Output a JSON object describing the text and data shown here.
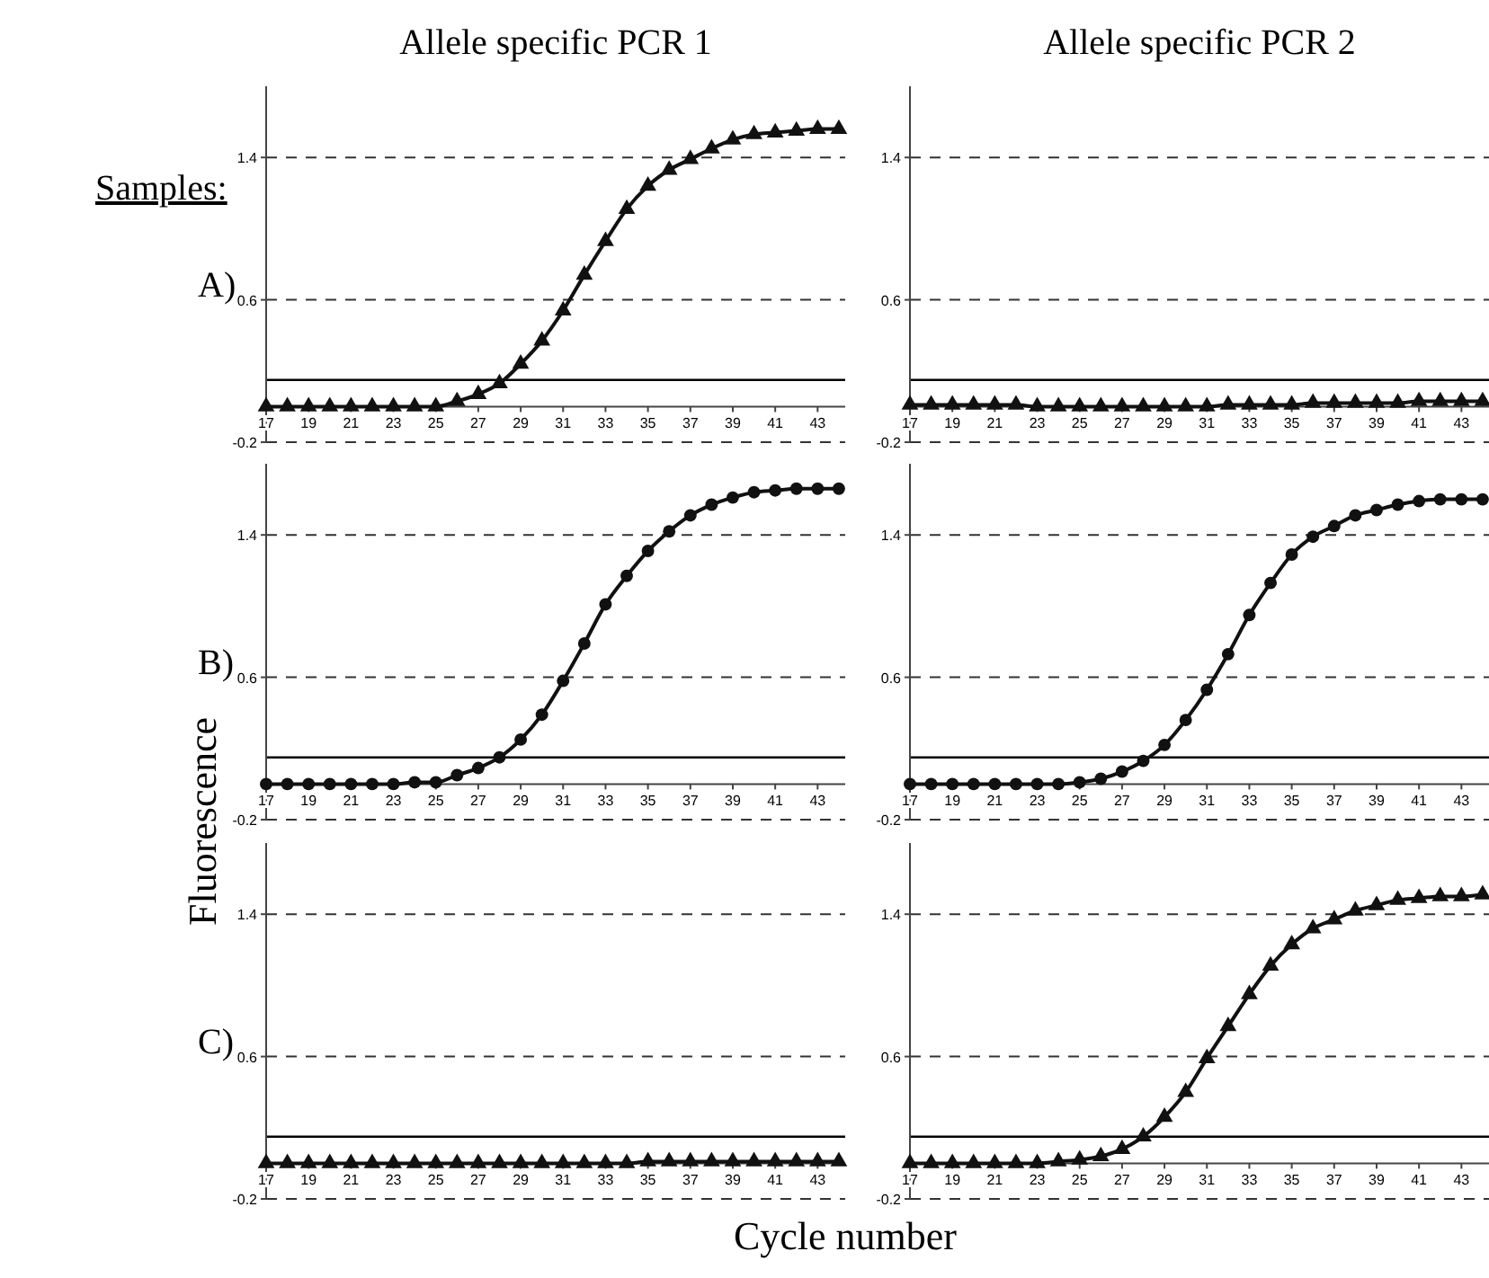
{
  "chart_data": [
    {
      "type": "line",
      "title": "Allele specific PCR 1",
      "annotations": [
        "Samples:",
        "A)"
      ],
      "x": [
        17,
        18,
        19,
        20,
        21,
        22,
        23,
        24,
        25,
        26,
        27,
        28,
        29,
        30,
        31,
        32,
        33,
        34,
        35,
        36,
        37,
        38,
        39,
        40,
        41,
        42,
        43,
        44
      ],
      "series": [
        {
          "color": "#111111",
          "values": [
            0.0,
            0.0,
            0.0,
            0.0,
            0.0,
            0.0,
            0.0,
            0.0,
            0.0,
            0.03,
            0.07,
            0.13,
            0.24,
            0.37,
            0.54,
            0.74,
            0.93,
            1.11,
            1.24,
            1.33,
            1.39,
            1.45,
            1.5,
            1.53,
            1.54,
            1.55,
            1.56,
            1.56
          ]
        }
      ],
      "marker": "triangle",
      "xlim": [
        17,
        44.3
      ],
      "xticks": [
        17,
        19,
        21,
        23,
        25,
        27,
        29,
        31,
        33,
        35,
        37,
        39,
        41,
        43
      ],
      "ylim": [
        -0.2,
        1.8
      ],
      "yticks": [
        -0.2,
        0.6,
        1.4
      ],
      "grid": "y",
      "ref_lines": [
        {
          "axis": "y",
          "value": 0.15
        }
      ]
    },
    {
      "type": "line",
      "title": "Allele specific PCR 2",
      "x": [
        17,
        18,
        19,
        20,
        21,
        22,
        23,
        24,
        25,
        26,
        27,
        28,
        29,
        30,
        31,
        32,
        33,
        34,
        35,
        36,
        37,
        38,
        39,
        40,
        41,
        42,
        43,
        44
      ],
      "series": [
        {
          "color": "#111111",
          "values": [
            0.01,
            0.01,
            0.01,
            0.01,
            0.01,
            0.01,
            0.0,
            0.0,
            0.0,
            0.0,
            0.0,
            0.0,
            0.0,
            0.0,
            0.0,
            0.01,
            0.01,
            0.01,
            0.01,
            0.02,
            0.02,
            0.02,
            0.02,
            0.02,
            0.03,
            0.03,
            0.03,
            0.03
          ]
        }
      ],
      "marker": "triangle",
      "xlim": [
        17,
        44.3
      ],
      "xticks": [
        17,
        19,
        21,
        23,
        25,
        27,
        29,
        31,
        33,
        35,
        37,
        39,
        41,
        43
      ],
      "ylim": [
        -0.2,
        1.8
      ],
      "yticks": [
        -0.2,
        0.6,
        1.4
      ],
      "grid": "y",
      "ref_lines": [
        {
          "axis": "y",
          "value": 0.15
        }
      ]
    },
    {
      "type": "line",
      "ylabel": "Fluorescence",
      "annotations": [
        "B)"
      ],
      "x": [
        17,
        18,
        19,
        20,
        21,
        22,
        23,
        24,
        25,
        26,
        27,
        28,
        29,
        30,
        31,
        32,
        33,
        34,
        35,
        36,
        37,
        38,
        39,
        40,
        41,
        42,
        43,
        44
      ],
      "series": [
        {
          "color": "#111111",
          "values": [
            0.0,
            0.0,
            0.0,
            0.0,
            0.0,
            0.0,
            0.0,
            0.01,
            0.01,
            0.05,
            0.09,
            0.15,
            0.25,
            0.39,
            0.58,
            0.79,
            1.01,
            1.17,
            1.31,
            1.42,
            1.51,
            1.57,
            1.61,
            1.64,
            1.65,
            1.66,
            1.66,
            1.66
          ]
        }
      ],
      "marker": "circle",
      "xlim": [
        17,
        44.3
      ],
      "xticks": [
        17,
        19,
        21,
        23,
        25,
        27,
        29,
        31,
        33,
        35,
        37,
        39,
        41,
        43
      ],
      "ylim": [
        -0.2,
        1.8
      ],
      "yticks": [
        -0.2,
        0.6,
        1.4
      ],
      "grid": "y",
      "ref_lines": [
        {
          "axis": "y",
          "value": 0.15
        }
      ]
    },
    {
      "type": "line",
      "x": [
        17,
        18,
        19,
        20,
        21,
        22,
        23,
        24,
        25,
        26,
        27,
        28,
        29,
        30,
        31,
        32,
        33,
        34,
        35,
        36,
        37,
        38,
        39,
        40,
        41,
        42,
        43,
        44
      ],
      "series": [
        {
          "color": "#111111",
          "values": [
            0.0,
            0.0,
            0.0,
            0.0,
            0.0,
            0.0,
            0.0,
            0.0,
            0.01,
            0.03,
            0.07,
            0.13,
            0.22,
            0.36,
            0.53,
            0.73,
            0.95,
            1.13,
            1.29,
            1.39,
            1.45,
            1.51,
            1.54,
            1.57,
            1.59,
            1.6,
            1.6,
            1.6
          ]
        }
      ],
      "marker": "circle",
      "xlim": [
        17,
        44.3
      ],
      "xticks": [
        17,
        19,
        21,
        23,
        25,
        27,
        29,
        31,
        33,
        35,
        37,
        39,
        41,
        43
      ],
      "ylim": [
        -0.2,
        1.8
      ],
      "yticks": [
        -0.2,
        0.6,
        1.4
      ],
      "grid": "y",
      "ref_lines": [
        {
          "axis": "y",
          "value": 0.15
        }
      ]
    },
    {
      "type": "line",
      "xlabel": "Cycle number",
      "annotations": [
        "C)"
      ],
      "x": [
        17,
        18,
        19,
        20,
        21,
        22,
        23,
        24,
        25,
        26,
        27,
        28,
        29,
        30,
        31,
        32,
        33,
        34,
        35,
        36,
        37,
        38,
        39,
        40,
        41,
        42,
        43,
        44
      ],
      "series": [
        {
          "color": "#111111",
          "values": [
            0.0,
            0.0,
            0.0,
            0.0,
            0.0,
            0.0,
            0.0,
            0.0,
            0.0,
            0.0,
            0.0,
            0.0,
            0.0,
            0.0,
            0.0,
            0.0,
            0.0,
            0.0,
            0.01,
            0.01,
            0.01,
            0.01,
            0.01,
            0.01,
            0.01,
            0.01,
            0.01,
            0.01
          ]
        }
      ],
      "marker": "triangle",
      "xlim": [
        17,
        44.3
      ],
      "xticks": [
        17,
        19,
        21,
        23,
        25,
        27,
        29,
        31,
        33,
        35,
        37,
        39,
        41,
        43
      ],
      "ylim": [
        -0.2,
        1.8
      ],
      "yticks": [
        -0.2,
        0.6,
        1.4
      ],
      "grid": "y",
      "ref_lines": [
        {
          "axis": "y",
          "value": 0.15
        }
      ]
    },
    {
      "type": "line",
      "x": [
        17,
        18,
        19,
        20,
        21,
        22,
        23,
        24,
        25,
        26,
        27,
        28,
        29,
        30,
        31,
        32,
        33,
        34,
        35,
        36,
        37,
        38,
        39,
        40,
        41,
        42,
        43,
        44
      ],
      "series": [
        {
          "color": "#111111",
          "values": [
            0.0,
            0.0,
            0.0,
            0.0,
            0.0,
            0.0,
            0.0,
            0.01,
            0.02,
            0.04,
            0.08,
            0.15,
            0.26,
            0.4,
            0.59,
            0.77,
            0.95,
            1.11,
            1.23,
            1.32,
            1.37,
            1.42,
            1.45,
            1.48,
            1.49,
            1.5,
            1.5,
            1.51
          ]
        }
      ],
      "marker": "triangle",
      "xlim": [
        17,
        44.3
      ],
      "xticks": [
        17,
        19,
        21,
        23,
        25,
        27,
        29,
        31,
        33,
        35,
        37,
        39,
        41,
        43
      ],
      "ylim": [
        -0.2,
        1.8
      ],
      "yticks": [
        -0.2,
        0.6,
        1.4
      ],
      "grid": "y",
      "ref_lines": [
        {
          "axis": "y",
          "value": 0.15
        }
      ]
    }
  ]
}
